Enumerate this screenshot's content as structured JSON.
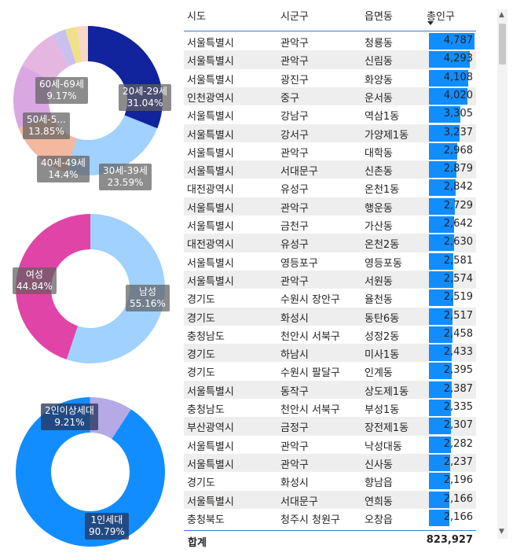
{
  "chart_data": [
    {
      "type": "pie",
      "donut": true,
      "categories": [
        "20세-29세",
        "30세-39세",
        "40세-49세",
        "50세-59세",
        "60세-69세",
        "",
        "",
        ""
      ],
      "values": [
        31.04,
        23.59,
        14.4,
        13.85,
        9.17,
        3.0,
        2.5,
        2.45
      ],
      "colors": [
        "#12239e",
        "#a0d1ff",
        "#f2b8a0",
        "#d9a8e3",
        "#e4b6e0",
        "#c9c0ef",
        "#efe08a",
        "#f8d6c8"
      ],
      "labels": [
        {
          "name": "20세-29세",
          "pct": "31.04%"
        },
        {
          "name": "30세-39세",
          "pct": "23.59%"
        },
        {
          "name": "40세-49세",
          "pct": "14.4%"
        },
        {
          "name": "50세-5...",
          "pct": "13.85%"
        },
        {
          "name": "60세-69세",
          "pct": "9.17%"
        }
      ]
    },
    {
      "type": "pie",
      "donut": true,
      "categories": [
        "남성",
        "여성"
      ],
      "values": [
        55.16,
        44.84
      ],
      "colors": [
        "#a0d1ff",
        "#e044a7"
      ],
      "labels": [
        {
          "name": "남성",
          "pct": "55.16%"
        },
        {
          "name": "여성",
          "pct": "44.84%"
        }
      ]
    },
    {
      "type": "pie",
      "donut": true,
      "categories": [
        "1인세대",
        "2인이상세대"
      ],
      "values": [
        90.79,
        9.21
      ],
      "colors": [
        "#118dff",
        "#b5a9e6"
      ],
      "labels": [
        {
          "name": "1인세대",
          "pct": "90.79%"
        },
        {
          "name": "2인이상세대",
          "pct": "9.21%"
        }
      ]
    },
    {
      "type": "table",
      "columns": [
        "시도",
        "시군구",
        "읍면동",
        "총인구"
      ],
      "sort_column": "총인구",
      "bar_color": "#118dff",
      "rows": [
        [
          "서울특별시",
          "관악구",
          "청룡동",
          "4,787",
          4787
        ],
        [
          "서울특별시",
          "관악구",
          "신림동",
          "4,293",
          4293
        ],
        [
          "서울특별시",
          "광진구",
          "화양동",
          "4,108",
          4108
        ],
        [
          "인천광역시",
          "중구",
          "운서동",
          "4,020",
          4020
        ],
        [
          "서울특별시",
          "강남구",
          "역삼1동",
          "3,305",
          3305
        ],
        [
          "서울특별시",
          "강서구",
          "가양제1동",
          "3,237",
          3237
        ],
        [
          "서울특별시",
          "관악구",
          "대학동",
          "2,968",
          2968
        ],
        [
          "서울특별시",
          "서대문구",
          "신촌동",
          "2,879",
          2879
        ],
        [
          "대전광역시",
          "유성구",
          "온천1동",
          "2,842",
          2842
        ],
        [
          "서울특별시",
          "관악구",
          "행운동",
          "2,729",
          2729
        ],
        [
          "서울특별시",
          "금천구",
          "가산동",
          "2,642",
          2642
        ],
        [
          "대전광역시",
          "유성구",
          "온천2동",
          "2,630",
          2630
        ],
        [
          "서울특별시",
          "영등포구",
          "영등포동",
          "2,581",
          2581
        ],
        [
          "서울특별시",
          "관악구",
          "서원동",
          "2,574",
          2574
        ],
        [
          "경기도",
          "수원시 장안구",
          "율천동",
          "2,519",
          2519
        ],
        [
          "경기도",
          "화성시",
          "동탄6동",
          "2,517",
          2517
        ],
        [
          "충청남도",
          "천안시 서북구",
          "성정2동",
          "2,458",
          2458
        ],
        [
          "경기도",
          "하남시",
          "미사1동",
          "2,433",
          2433
        ],
        [
          "경기도",
          "수원시 팔달구",
          "인계동",
          "2,395",
          2395
        ],
        [
          "서울특별시",
          "동작구",
          "상도제1동",
          "2,387",
          2387
        ],
        [
          "충청남도",
          "천안시 서북구",
          "부성1동",
          "2,335",
          2335
        ],
        [
          "부산광역시",
          "금정구",
          "장전제1동",
          "2,307",
          2307
        ],
        [
          "서울특별시",
          "관악구",
          "낙성대동",
          "2,282",
          2282
        ],
        [
          "서울특별시",
          "관악구",
          "신사동",
          "2,237",
          2237
        ],
        [
          "경기도",
          "화성시",
          "향남읍",
          "2,196",
          2196
        ],
        [
          "서울특별시",
          "서대문구",
          "연희동",
          "2,166",
          2166
        ],
        [
          "충청북도",
          "청주시 청원구",
          "오창읍",
          "2,166",
          2166
        ]
      ],
      "total_label": "합계",
      "total_value": "823,927"
    }
  ],
  "icons": {
    "scroll_up": "chevron-up-icon",
    "scroll_down": "chevron-down-icon",
    "sort": "sort-descending-icon"
  }
}
